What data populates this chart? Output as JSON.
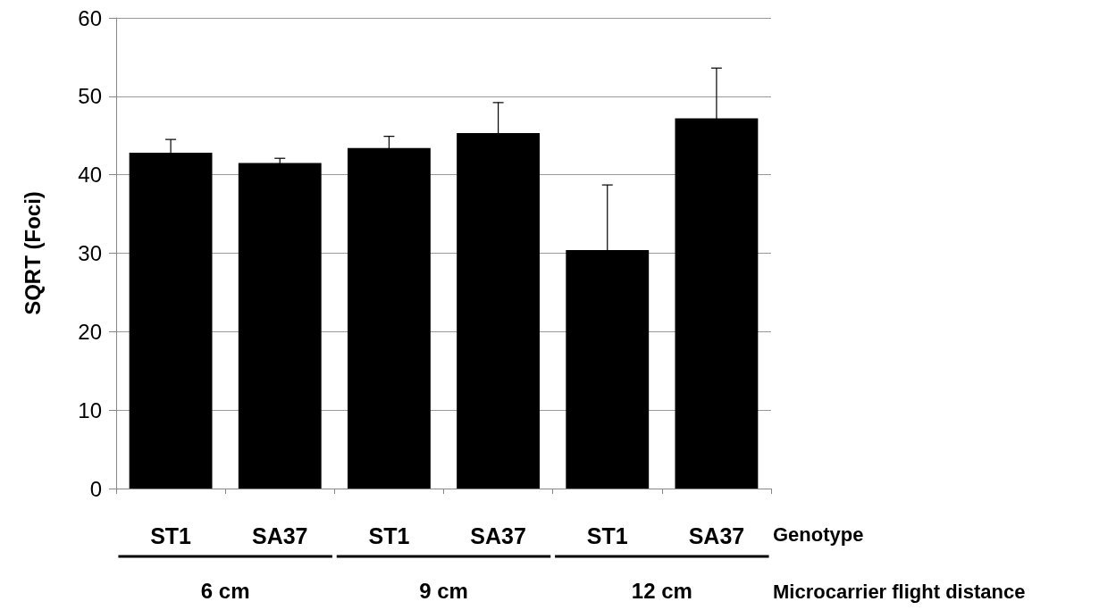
{
  "chart_data": {
    "type": "bar",
    "ylabel": "SQRT (Foci)",
    "xlabel": "Genotype",
    "categories": [
      "ST1",
      "SA37",
      "ST1",
      "SA37",
      "ST1",
      "SA37"
    ],
    "values": [
      42.8,
      41.5,
      43.4,
      45.3,
      30.4,
      47.2
    ],
    "errors": [
      1.7,
      0.6,
      1.5,
      3.9,
      8.3,
      6.4
    ],
    "color": "#000000",
    "ylim": [
      0,
      60
    ],
    "yticks": [
      0,
      10,
      20,
      30,
      40,
      50,
      60
    ],
    "grid": "y",
    "annotations": [
      "6 cm",
      "9 cm",
      "12 cm",
      "Microcarrier flight distance"
    ]
  }
}
